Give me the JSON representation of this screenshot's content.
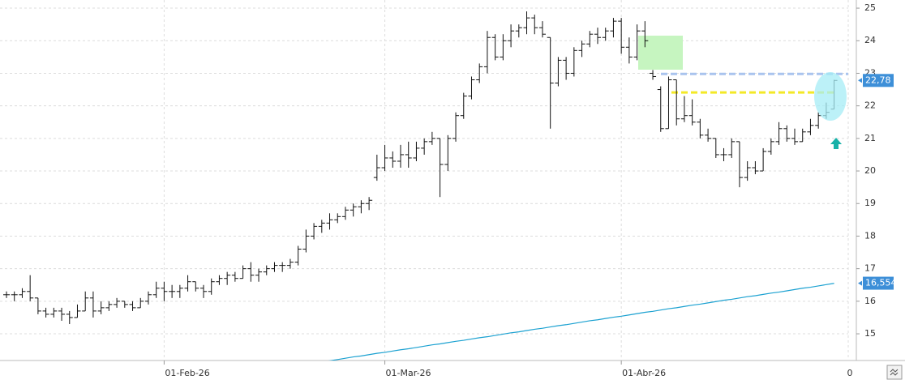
{
  "chart_data": {
    "type": "ohlc",
    "bar_color": "#111111",
    "categories": [
      null,
      null,
      null,
      null,
      null,
      null,
      null,
      null,
      null,
      null,
      null,
      null,
      null,
      null,
      null,
      null,
      null,
      null,
      null,
      null,
      "01-Feb-26",
      null,
      null,
      null,
      null,
      null,
      null,
      null,
      null,
      null,
      null,
      null,
      null,
      null,
      null,
      null,
      null,
      null,
      null,
      null,
      null,
      null,
      null,
      null,
      null,
      null,
      null,
      null,
      "01-Mar-26",
      null,
      null,
      null,
      null,
      null,
      null,
      null,
      null,
      null,
      null,
      null,
      null,
      null,
      null,
      null,
      null,
      null,
      null,
      null,
      null,
      null,
      null,
      null,
      null,
      null,
      null,
      null,
      null,
      null,
      "01-Abr-26",
      null,
      null,
      null,
      null,
      null,
      null,
      null,
      null,
      null,
      null,
      null,
      null,
      null,
      null,
      null,
      null,
      null,
      null,
      null,
      null,
      null,
      null,
      null,
      null,
      null,
      null
    ],
    "ohlc": [
      [
        16.2,
        16.3,
        16.1,
        16.2
      ],
      [
        16.2,
        16.3,
        16.0,
        16.2
      ],
      [
        16.2,
        16.4,
        16.1,
        16.3
      ],
      [
        16.3,
        16.8,
        16.0,
        16.1
      ],
      [
        16.1,
        16.1,
        15.6,
        15.7
      ],
      [
        15.7,
        15.8,
        15.5,
        15.6
      ],
      [
        15.6,
        15.8,
        15.5,
        15.7
      ],
      [
        15.7,
        15.8,
        15.4,
        15.6
      ],
      [
        15.6,
        15.7,
        15.3,
        15.5
      ],
      [
        15.5,
        15.9,
        15.5,
        15.7
      ],
      [
        15.7,
        16.3,
        15.7,
        16.1
      ],
      [
        16.1,
        16.3,
        15.5,
        15.7
      ],
      [
        15.7,
        16.0,
        15.6,
        15.8
      ],
      [
        15.8,
        16.0,
        15.7,
        15.9
      ],
      [
        15.9,
        16.1,
        15.8,
        16.0
      ],
      [
        16.0,
        16.0,
        15.8,
        15.9
      ],
      [
        15.9,
        16.0,
        15.7,
        15.8
      ],
      [
        15.8,
        16.1,
        15.8,
        16.0
      ],
      [
        16.0,
        16.3,
        15.9,
        16.2
      ],
      [
        16.2,
        16.6,
        16.1,
        16.4
      ],
      [
        16.4,
        16.6,
        16.0,
        16.3
      ],
      [
        16.3,
        16.5,
        16.1,
        16.3
      ],
      [
        16.3,
        16.5,
        16.1,
        16.4
      ],
      [
        16.4,
        16.8,
        16.3,
        16.6
      ],
      [
        16.6,
        16.6,
        16.3,
        16.4
      ],
      [
        16.4,
        16.5,
        16.1,
        16.3
      ],
      [
        16.3,
        16.7,
        16.2,
        16.6
      ],
      [
        16.6,
        16.8,
        16.5,
        16.7
      ],
      [
        16.7,
        16.9,
        16.5,
        16.8
      ],
      [
        16.8,
        16.9,
        16.6,
        16.7
      ],
      [
        16.7,
        17.1,
        16.7,
        17.0
      ],
      [
        17.0,
        17.2,
        16.6,
        16.8
      ],
      [
        16.8,
        17.0,
        16.6,
        16.9
      ],
      [
        16.9,
        17.1,
        16.8,
        17.0
      ],
      [
        17.0,
        17.2,
        16.9,
        17.1
      ],
      [
        17.1,
        17.2,
        16.9,
        17.1
      ],
      [
        17.1,
        17.3,
        17.0,
        17.2
      ],
      [
        17.2,
        17.7,
        17.1,
        17.6
      ],
      [
        17.6,
        18.2,
        17.5,
        18.0
      ],
      [
        18.0,
        18.4,
        17.9,
        18.3
      ],
      [
        18.3,
        18.5,
        18.1,
        18.4
      ],
      [
        18.4,
        18.7,
        18.2,
        18.5
      ],
      [
        18.5,
        18.7,
        18.4,
        18.6
      ],
      [
        18.6,
        18.9,
        18.5,
        18.8
      ],
      [
        18.8,
        19.0,
        18.6,
        18.9
      ],
      [
        18.9,
        19.1,
        18.7,
        19.0
      ],
      [
        19.0,
        19.2,
        18.8,
        19.1
      ],
      [
        19.8,
        20.5,
        19.7,
        20.1
      ],
      [
        20.1,
        20.8,
        20.0,
        20.4
      ],
      [
        20.4,
        20.6,
        20.1,
        20.3
      ],
      [
        20.3,
        20.8,
        20.1,
        20.5
      ],
      [
        20.5,
        20.9,
        20.1,
        20.4
      ],
      [
        20.4,
        20.9,
        20.3,
        20.7
      ],
      [
        20.7,
        21.0,
        20.5,
        20.9
      ],
      [
        20.9,
        21.2,
        20.8,
        21.0
      ],
      [
        21.0,
        21.0,
        19.2,
        20.2
      ],
      [
        20.2,
        21.1,
        20.0,
        21.0
      ],
      [
        21.0,
        21.8,
        20.9,
        21.7
      ],
      [
        21.7,
        22.4,
        21.6,
        22.3
      ],
      [
        22.3,
        22.9,
        22.2,
        22.8
      ],
      [
        22.8,
        23.3,
        22.7,
        23.2
      ],
      [
        23.2,
        24.3,
        23.0,
        24.1
      ],
      [
        24.1,
        24.2,
        23.4,
        23.5
      ],
      [
        23.5,
        24.2,
        23.4,
        24.0
      ],
      [
        24.0,
        24.5,
        23.8,
        24.3
      ],
      [
        24.3,
        24.5,
        24.1,
        24.4
      ],
      [
        24.4,
        24.9,
        24.2,
        24.7
      ],
      [
        24.7,
        24.8,
        24.2,
        24.4
      ],
      [
        24.4,
        24.6,
        24.1,
        24.2
      ],
      [
        24.1,
        24.1,
        21.3,
        22.7
      ],
      [
        22.7,
        23.5,
        22.6,
        23.4
      ],
      [
        23.4,
        23.5,
        22.8,
        23.0
      ],
      [
        23.0,
        23.8,
        22.9,
        23.7
      ],
      [
        23.7,
        24.0,
        23.5,
        23.9
      ],
      [
        23.9,
        24.3,
        23.8,
        24.2
      ],
      [
        24.2,
        24.4,
        23.9,
        24.1
      ],
      [
        24.1,
        24.4,
        24.0,
        24.3
      ],
      [
        24.3,
        24.7,
        24.1,
        24.6
      ],
      [
        24.6,
        24.7,
        23.6,
        23.8
      ],
      [
        23.8,
        24.1,
        23.3,
        23.5
      ],
      [
        23.5,
        24.5,
        23.4,
        24.3
      ],
      [
        24.3,
        24.6,
        23.8,
        24.0
      ],
      [
        23.0,
        23.1,
        22.8,
        22.9
      ],
      [
        22.5,
        22.6,
        21.2,
        21.3
      ],
      [
        21.3,
        22.9,
        21.3,
        22.8
      ],
      [
        22.8,
        22.8,
        21.4,
        21.6
      ],
      [
        21.6,
        22.3,
        21.5,
        21.7
      ],
      [
        21.7,
        22.2,
        21.4,
        21.5
      ],
      [
        21.5,
        21.6,
        21.0,
        21.1
      ],
      [
        21.1,
        21.3,
        20.9,
        21.0
      ],
      [
        21.0,
        21.0,
        20.4,
        20.5
      ],
      [
        20.5,
        20.7,
        20.3,
        20.5
      ],
      [
        20.5,
        21.0,
        20.4,
        20.9
      ],
      [
        20.9,
        20.9,
        19.5,
        19.8
      ],
      [
        19.8,
        20.3,
        19.7,
        20.1
      ],
      [
        20.1,
        20.3,
        19.9,
        20.0
      ],
      [
        20.0,
        20.7,
        20.0,
        20.6
      ],
      [
        20.6,
        21.0,
        20.5,
        20.9
      ],
      [
        20.9,
        21.5,
        20.8,
        21.3
      ],
      [
        21.3,
        21.4,
        20.9,
        21.0
      ],
      [
        21.0,
        21.3,
        20.8,
        20.9
      ],
      [
        20.9,
        21.3,
        20.9,
        21.2
      ],
      [
        21.2,
        21.6,
        21.1,
        21.4
      ],
      [
        21.4,
        21.8,
        21.3,
        21.7
      ],
      [
        21.7,
        22.1,
        21.6,
        21.8
      ],
      [
        21.9,
        22.8,
        21.9,
        22.78
      ]
    ],
    "moving_average": {
      "color": "#1ba1d1",
      "values": [
        null,
        null,
        null,
        null,
        null,
        null,
        null,
        null,
        null,
        null,
        null,
        null,
        null,
        null,
        null,
        null,
        null,
        null,
        null,
        null,
        null,
        null,
        null,
        null,
        null,
        null,
        null,
        null,
        null,
        null,
        null,
        null,
        null,
        null,
        null,
        null,
        null,
        null,
        null,
        14.1,
        14.14,
        14.17,
        14.21,
        14.25,
        14.29,
        14.32,
        14.36,
        14.4,
        14.43,
        14.47,
        14.51,
        14.54,
        14.58,
        14.62,
        14.66,
        14.69,
        14.73,
        14.77,
        14.8,
        14.84,
        14.88,
        14.91,
        14.95,
        14.99,
        15.03,
        15.06,
        15.1,
        15.14,
        15.17,
        15.21,
        15.25,
        15.28,
        15.32,
        15.36,
        15.4,
        15.43,
        15.47,
        15.51,
        15.54,
        15.58,
        15.62,
        15.66,
        15.69,
        15.73,
        15.77,
        15.8,
        15.84,
        15.88,
        15.91,
        15.95,
        15.99,
        16.03,
        16.06,
        16.1,
        16.14,
        16.17,
        16.21,
        16.25,
        16.28,
        16.32,
        16.36,
        16.4,
        16.43,
        16.47,
        16.51,
        16.55
      ]
    },
    "levels": [
      {
        "value": 22.98,
        "color": "#a9c4ee"
      },
      {
        "value": 22.41,
        "color": "#f3e928"
      }
    ],
    "price_labels": [
      {
        "value": 22.78,
        "label": "22,78"
      },
      {
        "value": 16.554,
        "label": "16,554"
      }
    ],
    "x_end_label": "0",
    "ylim": [
      14.18,
      25.25
    ],
    "yticks": [
      15,
      16,
      17,
      18,
      19,
      20,
      21,
      22,
      23,
      24,
      25
    ],
    "grid": true
  }
}
